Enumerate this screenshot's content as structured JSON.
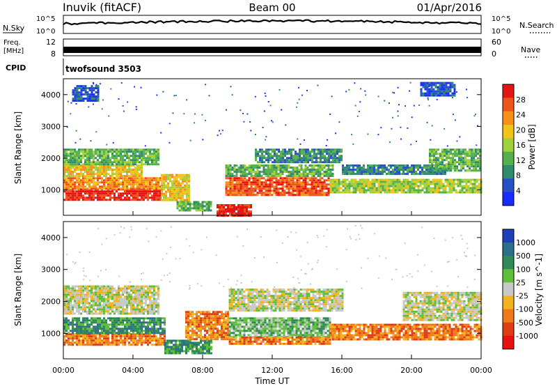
{
  "header": {
    "station": "Inuvik (fitACF)",
    "beam": "Beam 00",
    "date": "01/Apr/2016"
  },
  "top_panels": {
    "nsky_label": "N.Sky",
    "nsearch_label": "N.Search",
    "noise_ticks_top": "10^5",
    "noise_ticks_bottom": "10^0",
    "freq_label_1": "Freq.",
    "freq_label_2": "[MHz]",
    "freq_ticks": [
      "12",
      "8"
    ],
    "nave_label": "Nave",
    "nave_ticks": [
      "60",
      "0"
    ],
    "cpid_label": "CPID",
    "cpid_value": "twofsound 3503"
  },
  "chart_data": [
    {
      "type": "heatmap",
      "name": "power",
      "ylabel": "Slant Range [km]",
      "ylim": [
        200,
        4500
      ],
      "yticks": [
        "1000",
        "2000",
        "3000",
        "4000"
      ],
      "xlim": [
        0,
        24
      ],
      "colorbar_title": "Power [dB]",
      "colorbar_ticks": [
        "4",
        "8",
        "12",
        "16",
        "20",
        "24",
        "28"
      ],
      "colorbar_colors": [
        "#1a2bff",
        "#2750c8",
        "#2e8b6e",
        "#55b04b",
        "#9fd23a",
        "#f2c418",
        "#f7901a",
        "#f0521c",
        "#e61515"
      ],
      "bands": [
        {
          "t0": 0.0,
          "t1": 5.6,
          "r0": 700,
          "r1": 1050,
          "level": 8
        },
        {
          "t0": 0.0,
          "t1": 5.6,
          "r0": 1050,
          "r1": 1400,
          "level": 6
        },
        {
          "t0": 0.0,
          "t1": 4.5,
          "r0": 1450,
          "r1": 1800,
          "level": 5
        },
        {
          "t0": 0.0,
          "t1": 5.5,
          "r0": 1800,
          "r1": 2300,
          "level": 3
        },
        {
          "t0": 5.6,
          "t1": 7.2,
          "r0": 700,
          "r1": 1500,
          "level": 5
        },
        {
          "t0": 6.5,
          "t1": 8.5,
          "r0": 350,
          "r1": 650,
          "level": 3
        },
        {
          "t0": 8.8,
          "t1": 10.8,
          "r0": 200,
          "r1": 550,
          "level": 8
        },
        {
          "t0": 9.3,
          "t1": 15.2,
          "r0": 850,
          "r1": 1400,
          "level": 7
        },
        {
          "t0": 9.3,
          "t1": 15.5,
          "r0": 1450,
          "r1": 1800,
          "level": 3
        },
        {
          "t0": 11.0,
          "t1": 16.0,
          "r0": 1900,
          "r1": 2300,
          "level": 2
        },
        {
          "t0": 15.3,
          "t1": 24.0,
          "r0": 900,
          "r1": 1350,
          "level": 4
        },
        {
          "t0": 16.0,
          "t1": 22.0,
          "r0": 1500,
          "r1": 1800,
          "level": 2
        },
        {
          "t0": 21.0,
          "t1": 24.0,
          "r0": 1600,
          "r1": 2300,
          "level": 3
        },
        {
          "t0": 0.5,
          "t1": 2.0,
          "r0": 3800,
          "r1": 4300,
          "level": 1
        },
        {
          "t0": 20.5,
          "t1": 22.5,
          "r0": 4000,
          "r1": 4400,
          "level": 1
        }
      ]
    },
    {
      "type": "heatmap",
      "name": "velocity",
      "ylabel": "Slant Range [km]",
      "ylim": [
        200,
        4500
      ],
      "yticks": [
        "1000",
        "2000",
        "3000",
        "4000"
      ],
      "xlim": [
        0,
        24
      ],
      "xticks": [
        "00:00",
        "04:00",
        "08:00",
        "12:00",
        "16:00",
        "20:00",
        "00:00"
      ],
      "xlabel": "Time UT",
      "colorbar_title": "Velocity [m s^-1]",
      "colorbar_ticks": [
        "1000",
        "500",
        "100",
        "25",
        "-25",
        "-100",
        "-500",
        "-1000"
      ],
      "colorbar_colors": [
        "#1f3fb8",
        "#2c6f8a",
        "#2e8b57",
        "#5fbf3a",
        "#c8c8c8",
        "#f2b41e",
        "#f07a1a",
        "#e03c16",
        "#e81010"
      ],
      "bands": [
        {
          "t0": 0.0,
          "t1": 5.8,
          "r0": 650,
          "r1": 1000,
          "level": 6
        },
        {
          "t0": 0.0,
          "t1": 5.8,
          "r0": 1000,
          "r1": 1500,
          "level": 2
        },
        {
          "t0": 0.0,
          "t1": 5.5,
          "r0": 1600,
          "r1": 2500,
          "level": 4
        },
        {
          "t0": 5.8,
          "t1": 8.5,
          "r0": 350,
          "r1": 800,
          "level": 2
        },
        {
          "t0": 7.0,
          "t1": 9.5,
          "r0": 800,
          "r1": 1700,
          "level": 6
        },
        {
          "t0": 9.5,
          "t1": 15.3,
          "r0": 900,
          "r1": 1500,
          "level": 3
        },
        {
          "t0": 9.5,
          "t1": 15.3,
          "r0": 700,
          "r1": 900,
          "level": 6
        },
        {
          "t0": 9.5,
          "t1": 16.0,
          "r0": 1700,
          "r1": 2400,
          "level": 4
        },
        {
          "t0": 15.3,
          "t1": 24.0,
          "r0": 800,
          "r1": 1300,
          "level": 6
        },
        {
          "t0": 19.5,
          "t1": 24.0,
          "r0": 1400,
          "r1": 2300,
          "level": 4
        }
      ]
    }
  ]
}
